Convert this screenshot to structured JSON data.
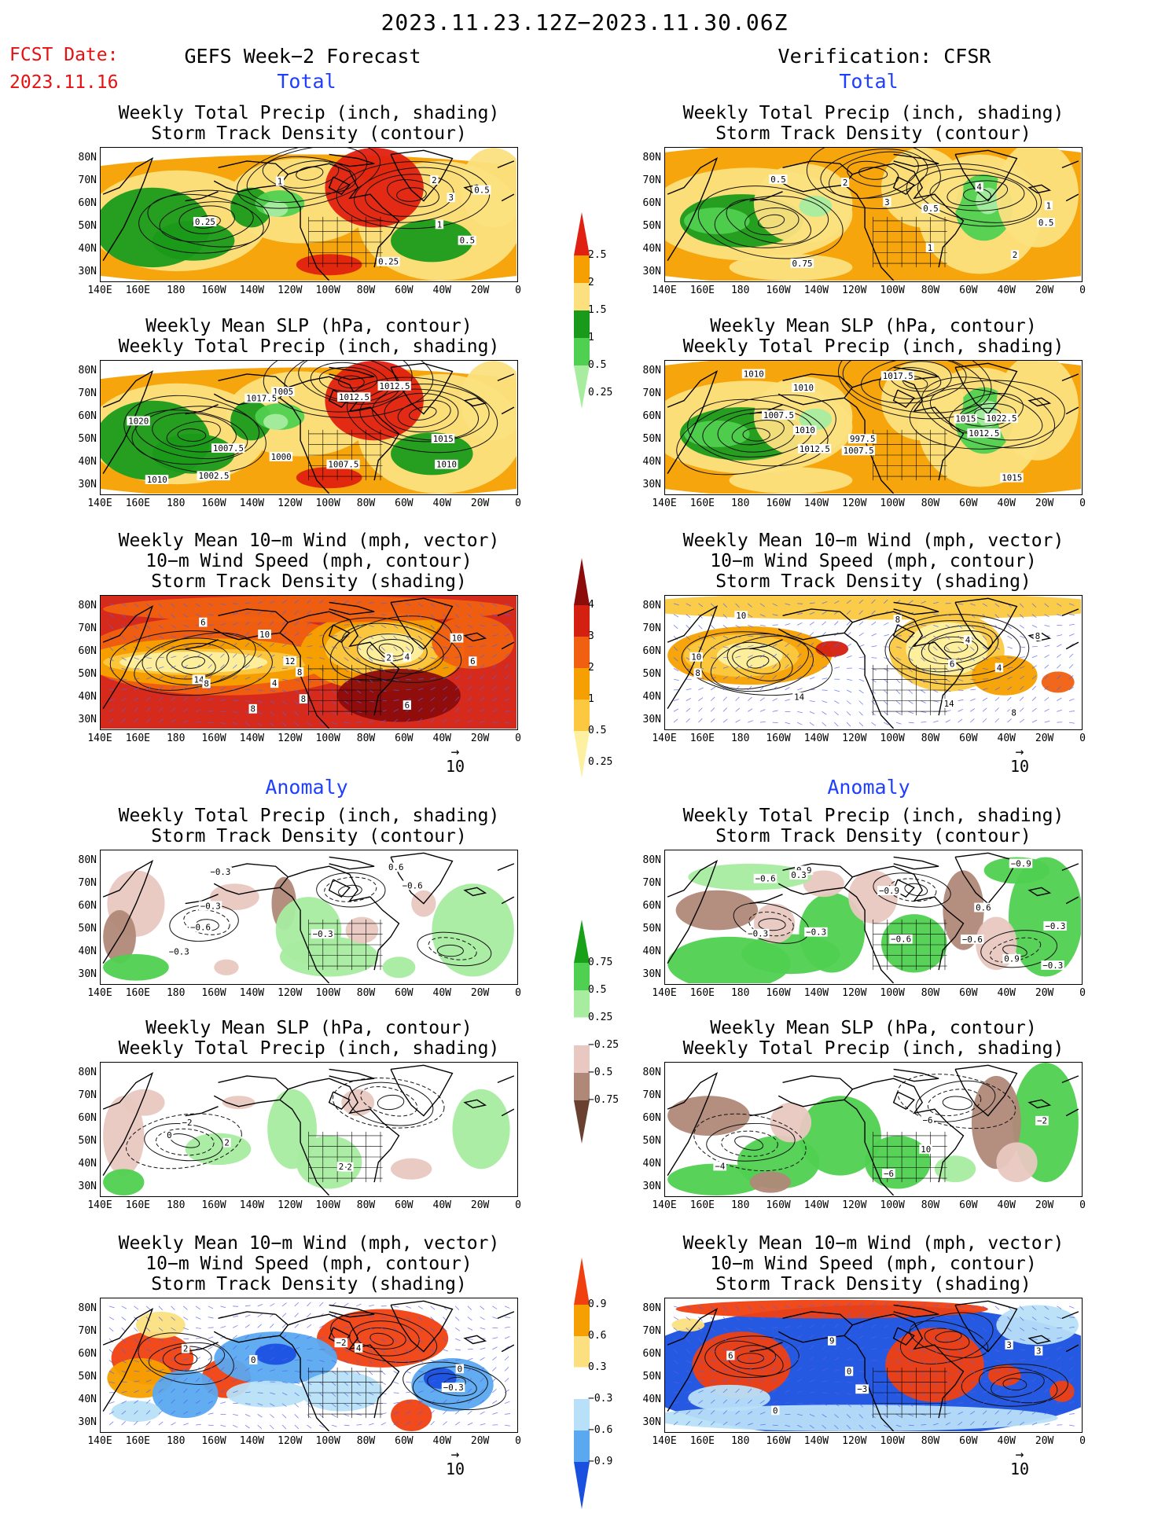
{
  "date_range": "2023.11.23.12Z−2023.11.30.06Z",
  "fcst_label": "FCST Date:",
  "fcst_date": "2023.11.16",
  "left_header": "GEFS Week−2 Forecast",
  "right_header": "Verification: CFSR",
  "section_total": "Total",
  "section_anomaly": "Anomaly",
  "panel_titles": {
    "precip_storm": [
      "Weekly Total Precip (inch, shading)",
      "Storm Track Density (contour)"
    ],
    "slp_precip": [
      "Weekly Mean SLP (hPa, contour)",
      "Weekly Total Precip (inch, shading)"
    ],
    "wind_storm": [
      "Weekly Mean 10−m Wind (mph, vector)",
      "10−m Wind Speed (mph, contour)",
      "Storm Track Density (shading)"
    ]
  },
  "lat_labels": [
    "80N",
    "70N",
    "60N",
    "50N",
    "40N",
    "30N"
  ],
  "lon_labels": [
    "140E",
    "160E",
    "180",
    "160W",
    "140W",
    "120W",
    "100W",
    "80W",
    "60W",
    "40W",
    "20W",
    "0"
  ],
  "vector_ref": "10",
  "colorbars": {
    "total_precip": {
      "labels": [
        "2.5",
        "2",
        "1.5",
        "1",
        "0.5",
        "0.25"
      ],
      "colors": [
        "#e02010",
        "#f5a000",
        "#fce080",
        "#1a9a1a",
        "#50d050",
        "#a8eca0"
      ]
    },
    "total_storm": {
      "labels": [
        "4",
        "3",
        "2",
        "1",
        "0.5",
        "0.25"
      ],
      "colors": [
        "#8c0c0c",
        "#d42010",
        "#f06010",
        "#f5a000",
        "#fbc840",
        "#fdf0a0"
      ]
    },
    "anom_precip": {
      "labels": [
        "0.75",
        "0.5",
        "0.25",
        "−0.25",
        "−0.5",
        "−0.75"
      ],
      "colors": [
        "#18a018",
        "#50d050",
        "#a8eca0",
        "#ffffff",
        "#e8c8c0",
        "#b08878",
        "#6a4030"
      ]
    },
    "anom_storm": {
      "labels": [
        "0.9",
        "0.6",
        "0.3",
        "−0.3",
        "−0.6",
        "−0.9"
      ],
      "colors": [
        "#f04010",
        "#f5a000",
        "#fce080",
        "#ffffff",
        "#b8e0f8",
        "#5aa8f0",
        "#1a50e0"
      ]
    }
  },
  "contour_labels": {
    "l1": [
      "0.5",
      "1",
      "2",
      "3",
      "1",
      "0.25",
      "0.5",
      "0.25"
    ],
    "r1": [
      "0.5",
      "1",
      "4",
      "2",
      "0.5",
      "0.75",
      "3",
      "2",
      "1",
      "0.5"
    ],
    "l2": [
      "1000",
      "1005",
      "1002.5",
      "1007.5",
      "1010",
      "1012.5",
      "1015",
      "1012.5",
      "1010",
      "1007.5",
      "1017.5",
      "1020"
    ],
    "r2": [
      "997.5",
      "1007.5",
      "1010",
      "1012.5",
      "1015",
      "1010",
      "1007.5",
      "1010",
      "1012.5",
      "1015",
      "1022.5",
      "1017.5"
    ],
    "l3": [
      "2",
      "6",
      "4",
      "8",
      "8",
      "10",
      "12",
      "14",
      "4",
      "6",
      "8",
      "6",
      "8",
      "10"
    ],
    "r3": [
      "4",
      "8",
      "6",
      "10",
      "14",
      "8",
      "8",
      "8",
      "4",
      "10",
      "14"
    ],
    "l4": [
      "−0.3",
      "0.6",
      "−0.3",
      "−0.6",
      "−0.3",
      "−0.3",
      "−0.6"
    ],
    "r4": [
      "−0.3",
      "−0.9",
      "−0.6",
      "0.9",
      "−0.3",
      "0.6",
      "−0.6",
      "−0.9",
      "0.3",
      "0.9",
      "−0.6",
      "−0.3",
      "−0.3"
    ],
    "l5": [
      "−2",
      "2",
      "2",
      "0",
      "−2"
    ],
    "r5": [
      "10",
      "−4",
      "−6",
      "−6",
      "−2"
    ],
    "l6": [
      "0",
      "4",
      "2",
      "0",
      "−2",
      "−0.3"
    ],
    "r6": [
      "3",
      "0",
      "6",
      "3",
      "9",
      "−3",
      "0"
    ]
  }
}
